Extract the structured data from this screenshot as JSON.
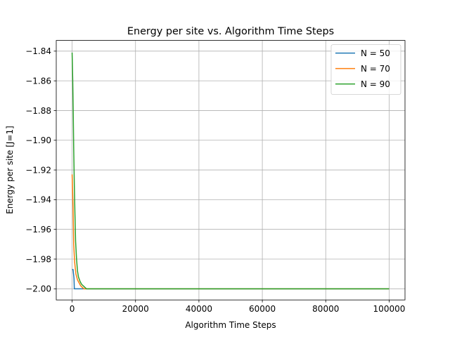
{
  "chart_data": {
    "type": "line",
    "title": "Energy per site vs. Algorithm Time Steps",
    "xlabel": "Algorithm Time Steps",
    "ylabel": "Energy per site [J=1]",
    "xlim": [
      -5000,
      105000
    ],
    "ylim": [
      -2.0075,
      -1.8328
    ],
    "xticks": [
      0,
      20000,
      40000,
      60000,
      80000,
      100000
    ],
    "xtick_labels": [
      "0",
      "20000",
      "40000",
      "60000",
      "80000",
      "100000"
    ],
    "yticks": [
      -2.0,
      -1.98,
      -1.96,
      -1.94,
      -1.92,
      -1.9,
      -1.88,
      -1.86,
      -1.84
    ],
    "ytick_labels": [
      "−2.00",
      "−1.98",
      "−1.96",
      "−1.94",
      "−1.92",
      "−1.90",
      "−1.88",
      "−1.86",
      "−1.84"
    ],
    "grid": true,
    "legend_position": "top-right",
    "series": [
      {
        "name": "N = 50",
        "color": "#1f77b4",
        "points": [
          [
            0,
            -1.987
          ],
          [
            300,
            -1.987
          ],
          [
            600,
            -1.993
          ],
          [
            700,
            -2.0
          ],
          [
            2500,
            -2.0
          ],
          [
            100000,
            -2.0
          ]
        ]
      },
      {
        "name": "N = 70",
        "color": "#ff7f0e",
        "points": [
          [
            0,
            -1.923
          ],
          [
            300,
            -1.945
          ],
          [
            500,
            -1.97
          ],
          [
            800,
            -1.982
          ],
          [
            1200,
            -1.99
          ],
          [
            1700,
            -1.994
          ],
          [
            2200,
            -1.996
          ],
          [
            2700,
            -1.998
          ],
          [
            3200,
            -1.999
          ],
          [
            3700,
            -2.0
          ],
          [
            100000,
            -2.0
          ]
        ]
      },
      {
        "name": "N = 90",
        "color": "#2ca02c",
        "points": [
          [
            0,
            -1.841
          ],
          [
            200,
            -1.86
          ],
          [
            350,
            -1.88
          ],
          [
            500,
            -1.905
          ],
          [
            700,
            -1.93
          ],
          [
            900,
            -1.95
          ],
          [
            1100,
            -1.968
          ],
          [
            1400,
            -1.98
          ],
          [
            1700,
            -1.988
          ],
          [
            2000,
            -1.992
          ],
          [
            2500,
            -1.995
          ],
          [
            3000,
            -1.997
          ],
          [
            3500,
            -1.998
          ],
          [
            4000,
            -1.999
          ],
          [
            4500,
            -2.0
          ],
          [
            100000,
            -2.0
          ]
        ]
      }
    ]
  }
}
